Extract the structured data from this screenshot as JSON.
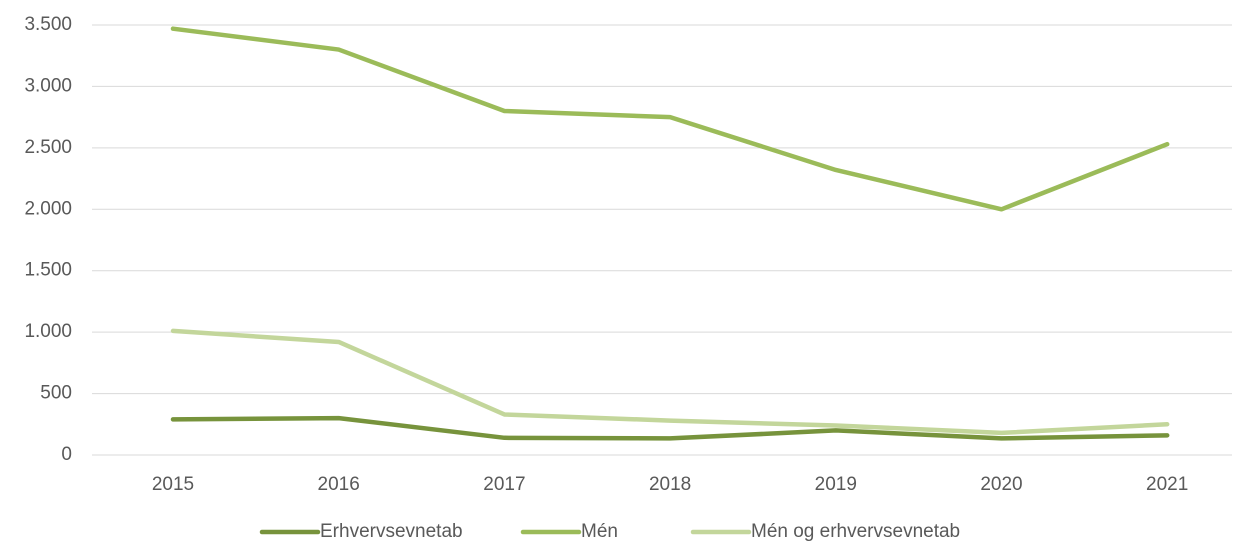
{
  "chart_data": {
    "type": "line",
    "categories": [
      "2015",
      "2016",
      "2017",
      "2018",
      "2019",
      "2020",
      "2021"
    ],
    "series": [
      {
        "name": "Erhvervsevnetab",
        "color": "#77933c",
        "values": [
          290,
          300,
          140,
          135,
          200,
          135,
          160
        ]
      },
      {
        "name": "Mén",
        "color": "#9bbb59",
        "values": [
          3470,
          3300,
          2800,
          2750,
          2320,
          2000,
          2530
        ]
      },
      {
        "name": "Mén og erhvervsevnetab",
        "color": "#c3d69b",
        "values": [
          1010,
          920,
          330,
          280,
          240,
          180,
          250
        ]
      }
    ],
    "ylim": [
      0,
      3500
    ],
    "yticks": [
      0,
      500,
      {
        "value": 1000,
        "label": "1.000"
      },
      {
        "value": 1500,
        "label": "1.500"
      },
      {
        "value": 2000,
        "label": "2.000"
      },
      {
        "value": 2500,
        "label": "2.500"
      },
      {
        "value": 3000,
        "label": "3.000"
      },
      {
        "value": 3500,
        "label": "3.500"
      }
    ],
    "grid": true,
    "legend": "bottom"
  }
}
